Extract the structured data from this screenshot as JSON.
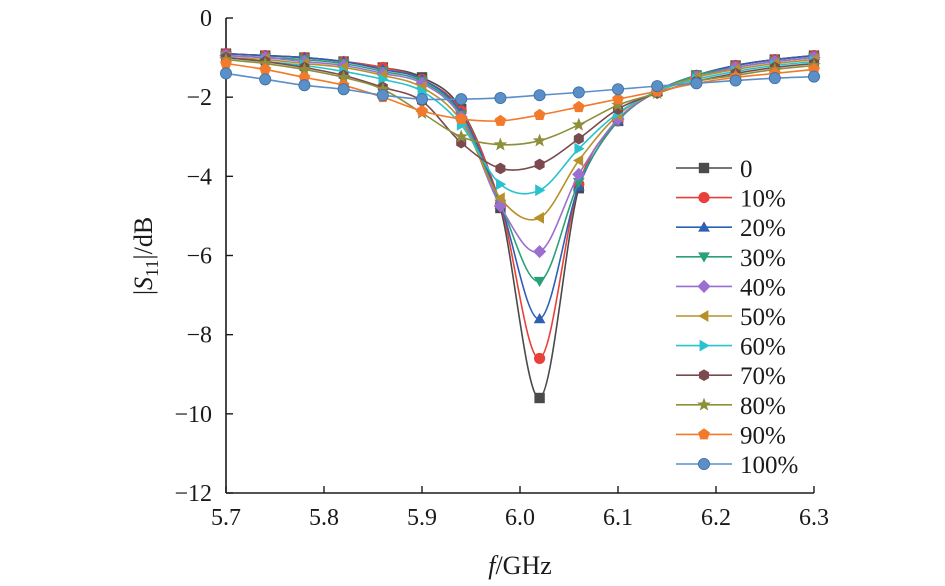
{
  "chart_data": {
    "type": "line",
    "title": "",
    "xlabel_italic": "f",
    "xlabel_unit": "/GHz",
    "ylabel_prefix": "|",
    "ylabel_symbol": "S",
    "ylabel_subscript": "11",
    "ylabel_suffix": "|/dB",
    "xlim": [
      5.7,
      6.3
    ],
    "ylim": [
      -12,
      0
    ],
    "xticks": [
      5.7,
      5.8,
      5.9,
      6.0,
      6.1,
      6.2,
      6.3
    ],
    "xtick_labels": [
      "5.7",
      "5.8",
      "5.9",
      "6.0",
      "6.1",
      "6.2",
      "6.3"
    ],
    "yticks": [
      0,
      -2,
      -4,
      -6,
      -8,
      -10,
      -12
    ],
    "ytick_labels": [
      "0",
      "−2",
      "−4",
      "−6",
      "−8",
      "−10",
      "−12"
    ],
    "x": [
      5.7,
      5.74,
      5.78,
      5.82,
      5.86,
      5.9,
      5.94,
      5.98,
      6.02,
      6.06,
      6.1,
      6.14,
      6.18,
      6.22,
      6.26,
      6.3
    ],
    "legend_position": "right",
    "series": [
      {
        "name": "0",
        "color": "#4a4a4a",
        "marker": "square",
        "values": [
          -0.9,
          -0.95,
          -1.0,
          -1.1,
          -1.25,
          -1.5,
          -2.3,
          -4.8,
          -9.6,
          -4.3,
          -2.6,
          -1.85,
          -1.45,
          -1.2,
          -1.05,
          -0.95
        ]
      },
      {
        "name": "10%",
        "color": "#e8413a",
        "marker": "circle",
        "values": [
          -0.9,
          -0.95,
          -1.0,
          -1.1,
          -1.25,
          -1.55,
          -2.35,
          -4.7,
          -8.6,
          -4.2,
          -2.6,
          -1.85,
          -1.45,
          -1.2,
          -1.05,
          -0.95
        ]
      },
      {
        "name": "20%",
        "color": "#2f5fb3",
        "marker": "triangle-up",
        "values": [
          -0.9,
          -0.95,
          -1.0,
          -1.1,
          -1.3,
          -1.55,
          -2.4,
          -4.7,
          -7.6,
          -4.25,
          -2.6,
          -1.85,
          -1.45,
          -1.2,
          -1.05,
          -0.95
        ]
      },
      {
        "name": "30%",
        "color": "#2aa07a",
        "marker": "triangle-down",
        "values": [
          -0.95,
          -1.0,
          -1.05,
          -1.15,
          -1.35,
          -1.6,
          -2.45,
          -4.7,
          -6.65,
          -4.15,
          -2.6,
          -1.85,
          -1.45,
          -1.25,
          -1.1,
          -1.0
        ]
      },
      {
        "name": "40%",
        "color": "#9b6fd0",
        "marker": "diamond",
        "values": [
          -0.95,
          -1.0,
          -1.1,
          -1.2,
          -1.4,
          -1.65,
          -2.5,
          -4.75,
          -5.9,
          -3.95,
          -2.55,
          -1.85,
          -1.5,
          -1.25,
          -1.1,
          -1.0
        ]
      },
      {
        "name": "50%",
        "color": "#b8902a",
        "marker": "triangle-left",
        "values": [
          -1.0,
          -1.05,
          -1.15,
          -1.25,
          -1.45,
          -1.75,
          -2.6,
          -4.55,
          -5.05,
          -3.6,
          -2.45,
          -1.85,
          -1.5,
          -1.3,
          -1.15,
          -1.05
        ]
      },
      {
        "name": "60%",
        "color": "#29c3cf",
        "marker": "triangle-right",
        "values": [
          -1.0,
          -1.1,
          -1.2,
          -1.35,
          -1.55,
          -1.85,
          -2.7,
          -4.2,
          -4.35,
          -3.3,
          -2.4,
          -1.85,
          -1.55,
          -1.35,
          -1.2,
          -1.1
        ]
      },
      {
        "name": "70%",
        "color": "#7a4a4f",
        "marker": "hexagon",
        "values": [
          -1.0,
          -1.1,
          -1.25,
          -1.45,
          -1.75,
          -2.1,
          -3.15,
          -3.8,
          -3.7,
          -3.05,
          -2.3,
          -1.9,
          -1.6,
          -1.4,
          -1.25,
          -1.15
        ]
      },
      {
        "name": "80%",
        "color": "#8d8f3a",
        "marker": "star",
        "values": [
          -1.05,
          -1.15,
          -1.3,
          -1.5,
          -1.8,
          -2.4,
          -3.0,
          -3.2,
          -3.1,
          -2.7,
          -2.2,
          -1.9,
          -1.6,
          -1.45,
          -1.3,
          -1.2
        ]
      },
      {
        "name": "90%",
        "color": "#f27a2a",
        "marker": "pentagon",
        "values": [
          -1.15,
          -1.3,
          -1.5,
          -1.7,
          -2.0,
          -2.35,
          -2.55,
          -2.6,
          -2.45,
          -2.25,
          -2.05,
          -1.85,
          -1.65,
          -1.5,
          -1.4,
          -1.3
        ]
      },
      {
        "name": "100%",
        "color": "#5b8fc7",
        "marker": "sphere",
        "values": [
          -1.4,
          -1.55,
          -1.7,
          -1.8,
          -1.95,
          -2.05,
          -2.05,
          -2.02,
          -1.95,
          -1.88,
          -1.8,
          -1.72,
          -1.65,
          -1.58,
          -1.52,
          -1.48
        ]
      }
    ]
  }
}
